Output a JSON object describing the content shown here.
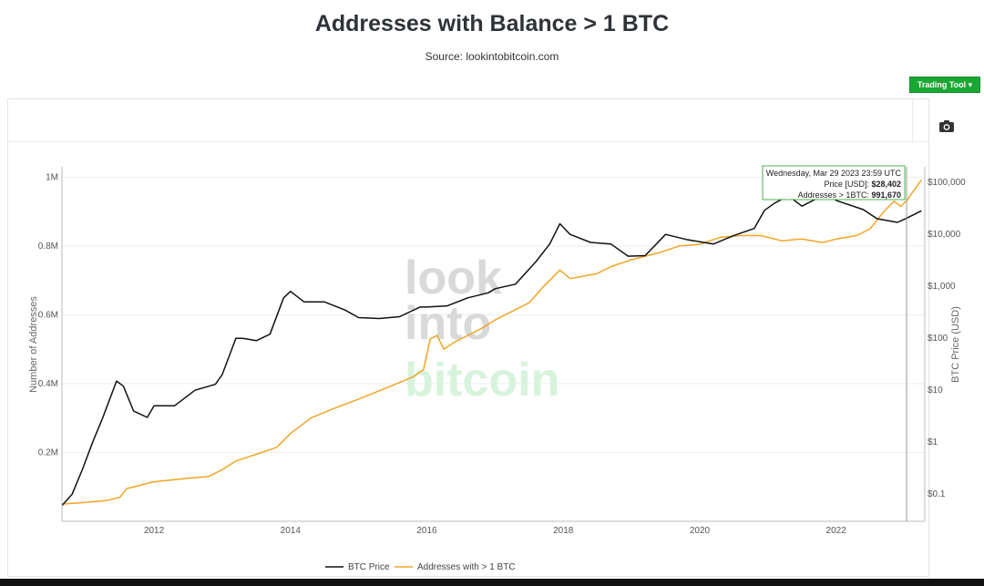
{
  "header": {
    "title": "Addresses with Balance > 1 BTC",
    "subtitle": "Source: lookintobitcoin.com",
    "trading_tool_label": "Trading Tool ▾"
  },
  "watermark": {
    "line1": "look",
    "line2": "into",
    "line3": "bitcoin"
  },
  "colors": {
    "btc_price": "#111111",
    "addresses": "#f0a527",
    "button": "#1aa834"
  },
  "tooltip": {
    "date": "Wednesday, Mar 29 2023 23:59 UTC",
    "price_label": "Price [USD]: ",
    "price_value": "$28,402",
    "addr_label": "Addresses > 1BTC: ",
    "addr_value": "991,670"
  },
  "legend": [
    "BTC Price",
    "Addresses with > 1 BTC"
  ],
  "chart_data": {
    "type": "line",
    "title": "Addresses with Balance > 1 BTC",
    "subtitle": "Source: lookintobitcoin.com",
    "x_ticks": [
      "2012",
      "2014",
      "2016",
      "2018",
      "2020",
      "2022"
    ],
    "xlim": [
      2010.65,
      2023.3
    ],
    "ylabel_left": "Number of Addresses",
    "ylim_left": [
      0,
      1030000
    ],
    "y_ticks_left": [
      "0.2M",
      "0.4M",
      "0.6M",
      "0.8M",
      "1M"
    ],
    "y_tick_values_left": [
      200000,
      400000,
      600000,
      800000,
      1000000
    ],
    "ylabel_right": "BTC Price (USD)",
    "y_scale_right": "log",
    "ylim_right": [
      0.03,
      200000
    ],
    "y_ticks_right": [
      "$0.1",
      "$1",
      "$10",
      "$100",
      "$1,000",
      "$10,000",
      "$100,000"
    ],
    "y_tick_values_right": [
      0.1,
      1,
      10,
      100,
      1000,
      10000,
      100000
    ],
    "legend_position": "bottom-center",
    "grid": true,
    "series": [
      {
        "name": "Addresses with > 1 BTC",
        "axis": "left",
        "x": [
          2010.65,
          2011.0,
          2011.3,
          2011.5,
          2011.6,
          2012.0,
          2012.5,
          2012.8,
          2013.0,
          2013.2,
          2013.5,
          2013.8,
          2014.0,
          2014.3,
          2014.6,
          2015.0,
          2015.5,
          2015.8,
          2015.95,
          2016.05,
          2016.15,
          2016.25,
          2016.4,
          2016.8,
          2017.0,
          2017.5,
          2017.7,
          2017.95,
          2018.1,
          2018.5,
          2018.7,
          2019.0,
          2019.4,
          2019.7,
          2020.0,
          2020.3,
          2020.6,
          2020.9,
          2021.2,
          2021.5,
          2021.8,
          2022.0,
          2022.3,
          2022.5,
          2022.7,
          2022.85,
          2022.95,
          2023.05,
          2023.1,
          2023.25
        ],
        "y": [
          50000,
          55000,
          60000,
          70000,
          95000,
          115000,
          125000,
          130000,
          150000,
          175000,
          195000,
          215000,
          255000,
          300000,
          325000,
          355000,
          395000,
          420000,
          440000,
          530000,
          540000,
          500000,
          520000,
          560000,
          585000,
          635000,
          680000,
          730000,
          705000,
          720000,
          740000,
          760000,
          780000,
          800000,
          805000,
          825000,
          830000,
          830000,
          815000,
          820000,
          810000,
          820000,
          830000,
          850000,
          900000,
          930000,
          915000,
          935000,
          950000,
          991670
        ]
      },
      {
        "name": "BTC Price",
        "axis": "right",
        "x": [
          2010.65,
          2010.8,
          2010.95,
          2011.1,
          2011.25,
          2011.45,
          2011.55,
          2011.7,
          2011.9,
          2012.0,
          2012.3,
          2012.6,
          2012.9,
          2013.0,
          2013.2,
          2013.3,
          2013.5,
          2013.7,
          2013.9,
          2014.0,
          2014.2,
          2014.5,
          2014.8,
          2015.0,
          2015.3,
          2015.6,
          2015.9,
          2016.0,
          2016.3,
          2016.6,
          2016.9,
          2017.0,
          2017.3,
          2017.6,
          2017.8,
          2017.95,
          2018.1,
          2018.4,
          2018.7,
          2018.95,
          2019.2,
          2019.5,
          2019.8,
          2020.0,
          2020.2,
          2020.5,
          2020.8,
          2020.95,
          2021.1,
          2021.3,
          2021.5,
          2021.85,
          2022.0,
          2022.4,
          2022.6,
          2022.9,
          2023.05,
          2023.25
        ],
        "y": [
          0.06,
          0.1,
          0.3,
          1.0,
          3,
          15,
          12,
          4,
          3,
          5,
          5,
          10,
          13,
          20,
          100,
          100,
          90,
          120,
          600,
          800,
          500,
          500,
          350,
          250,
          240,
          260,
          400,
          400,
          420,
          600,
          750,
          900,
          1100,
          3000,
          6500,
          16000,
          10000,
          7000,
          6500,
          3800,
          3900,
          10000,
          8000,
          7200,
          6500,
          9500,
          13000,
          29000,
          40000,
          55000,
          35000,
          60000,
          45000,
          30000,
          20000,
          17000,
          21000,
          28402
        ]
      }
    ]
  }
}
